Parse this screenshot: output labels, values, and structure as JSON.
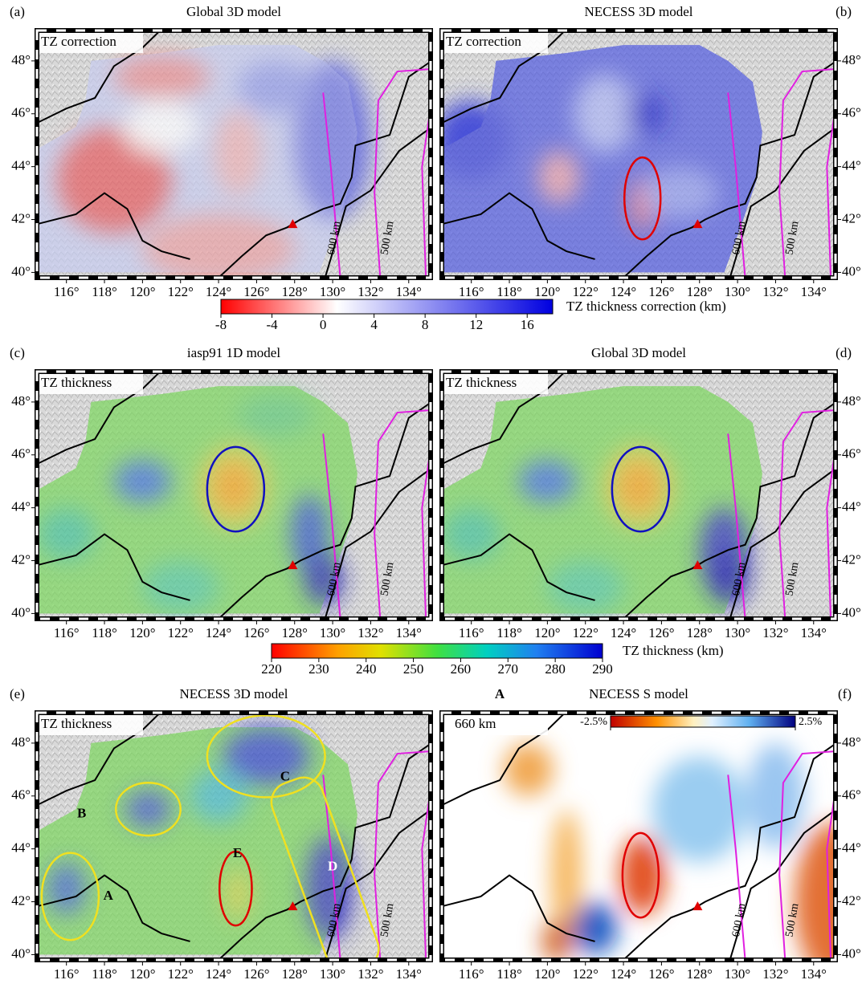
{
  "lon_range": [
    114.45,
    135.15
  ],
  "lat_range": [
    39.8,
    49.15
  ],
  "lon_ticks": [
    {
      "value": 116,
      "label": "116°"
    },
    {
      "value": 118,
      "label": "118°"
    },
    {
      "value": 120,
      "label": "120°"
    },
    {
      "value": 122,
      "label": "122°"
    },
    {
      "value": 124,
      "label": "124°"
    },
    {
      "value": 126,
      "label": "126°"
    },
    {
      "value": 128,
      "label": "128°"
    },
    {
      "value": 130,
      "label": "130°"
    },
    {
      "value": 132,
      "label": "132°"
    },
    {
      "value": 134,
      "label": "134°"
    }
  ],
  "lat_ticks": [
    {
      "value": 40,
      "label": "40°"
    },
    {
      "value": 42,
      "label": "42°"
    },
    {
      "value": 44,
      "label": "44°"
    },
    {
      "value": 46,
      "label": "46°"
    },
    {
      "value": 48,
      "label": "48°"
    }
  ],
  "contours": [
    "600 km",
    "500 km"
  ],
  "panels": [
    {
      "label": "(a)",
      "title": "Global 3D model",
      "inset": "TZ correction",
      "type": "correction"
    },
    {
      "label": "(b)",
      "title": "NECESS 3D model",
      "inset": "TZ correction",
      "type": "correction"
    },
    {
      "label": "(c)",
      "title": "iasp91 1D model",
      "inset": "TZ thickness",
      "type": "thickness"
    },
    {
      "label": "(d)",
      "title": "Global 3D model",
      "inset": "TZ thickness",
      "type": "thickness"
    },
    {
      "label": "(e)",
      "title": "NECESS 3D model",
      "inset": "TZ thickness",
      "type": "thickness",
      "regions": [
        "A",
        "B",
        "C",
        "D",
        "E"
      ]
    },
    {
      "label": "(f)",
      "title": "NECESS S model",
      "heading": "A",
      "inset": "660 km",
      "type": "velocity",
      "colorbar": {
        "range": [
          -2.5,
          2.5
        ],
        "ticks": [
          {
            "value": -2.5,
            "label": "-2.5%"
          },
          {
            "value": 2.5,
            "label": "2.5%"
          }
        ]
      }
    }
  ],
  "colorbars": [
    {
      "label": "TZ thickness correction (km)",
      "range": [
        -8,
        18
      ],
      "ticks": [
        -8,
        -4,
        0,
        4,
        8,
        12,
        16
      ]
    },
    {
      "label": "TZ thickness (km)",
      "range": [
        220,
        290
      ],
      "ticks": [
        220,
        230,
        240,
        250,
        260,
        270,
        280,
        290
      ]
    }
  ]
}
